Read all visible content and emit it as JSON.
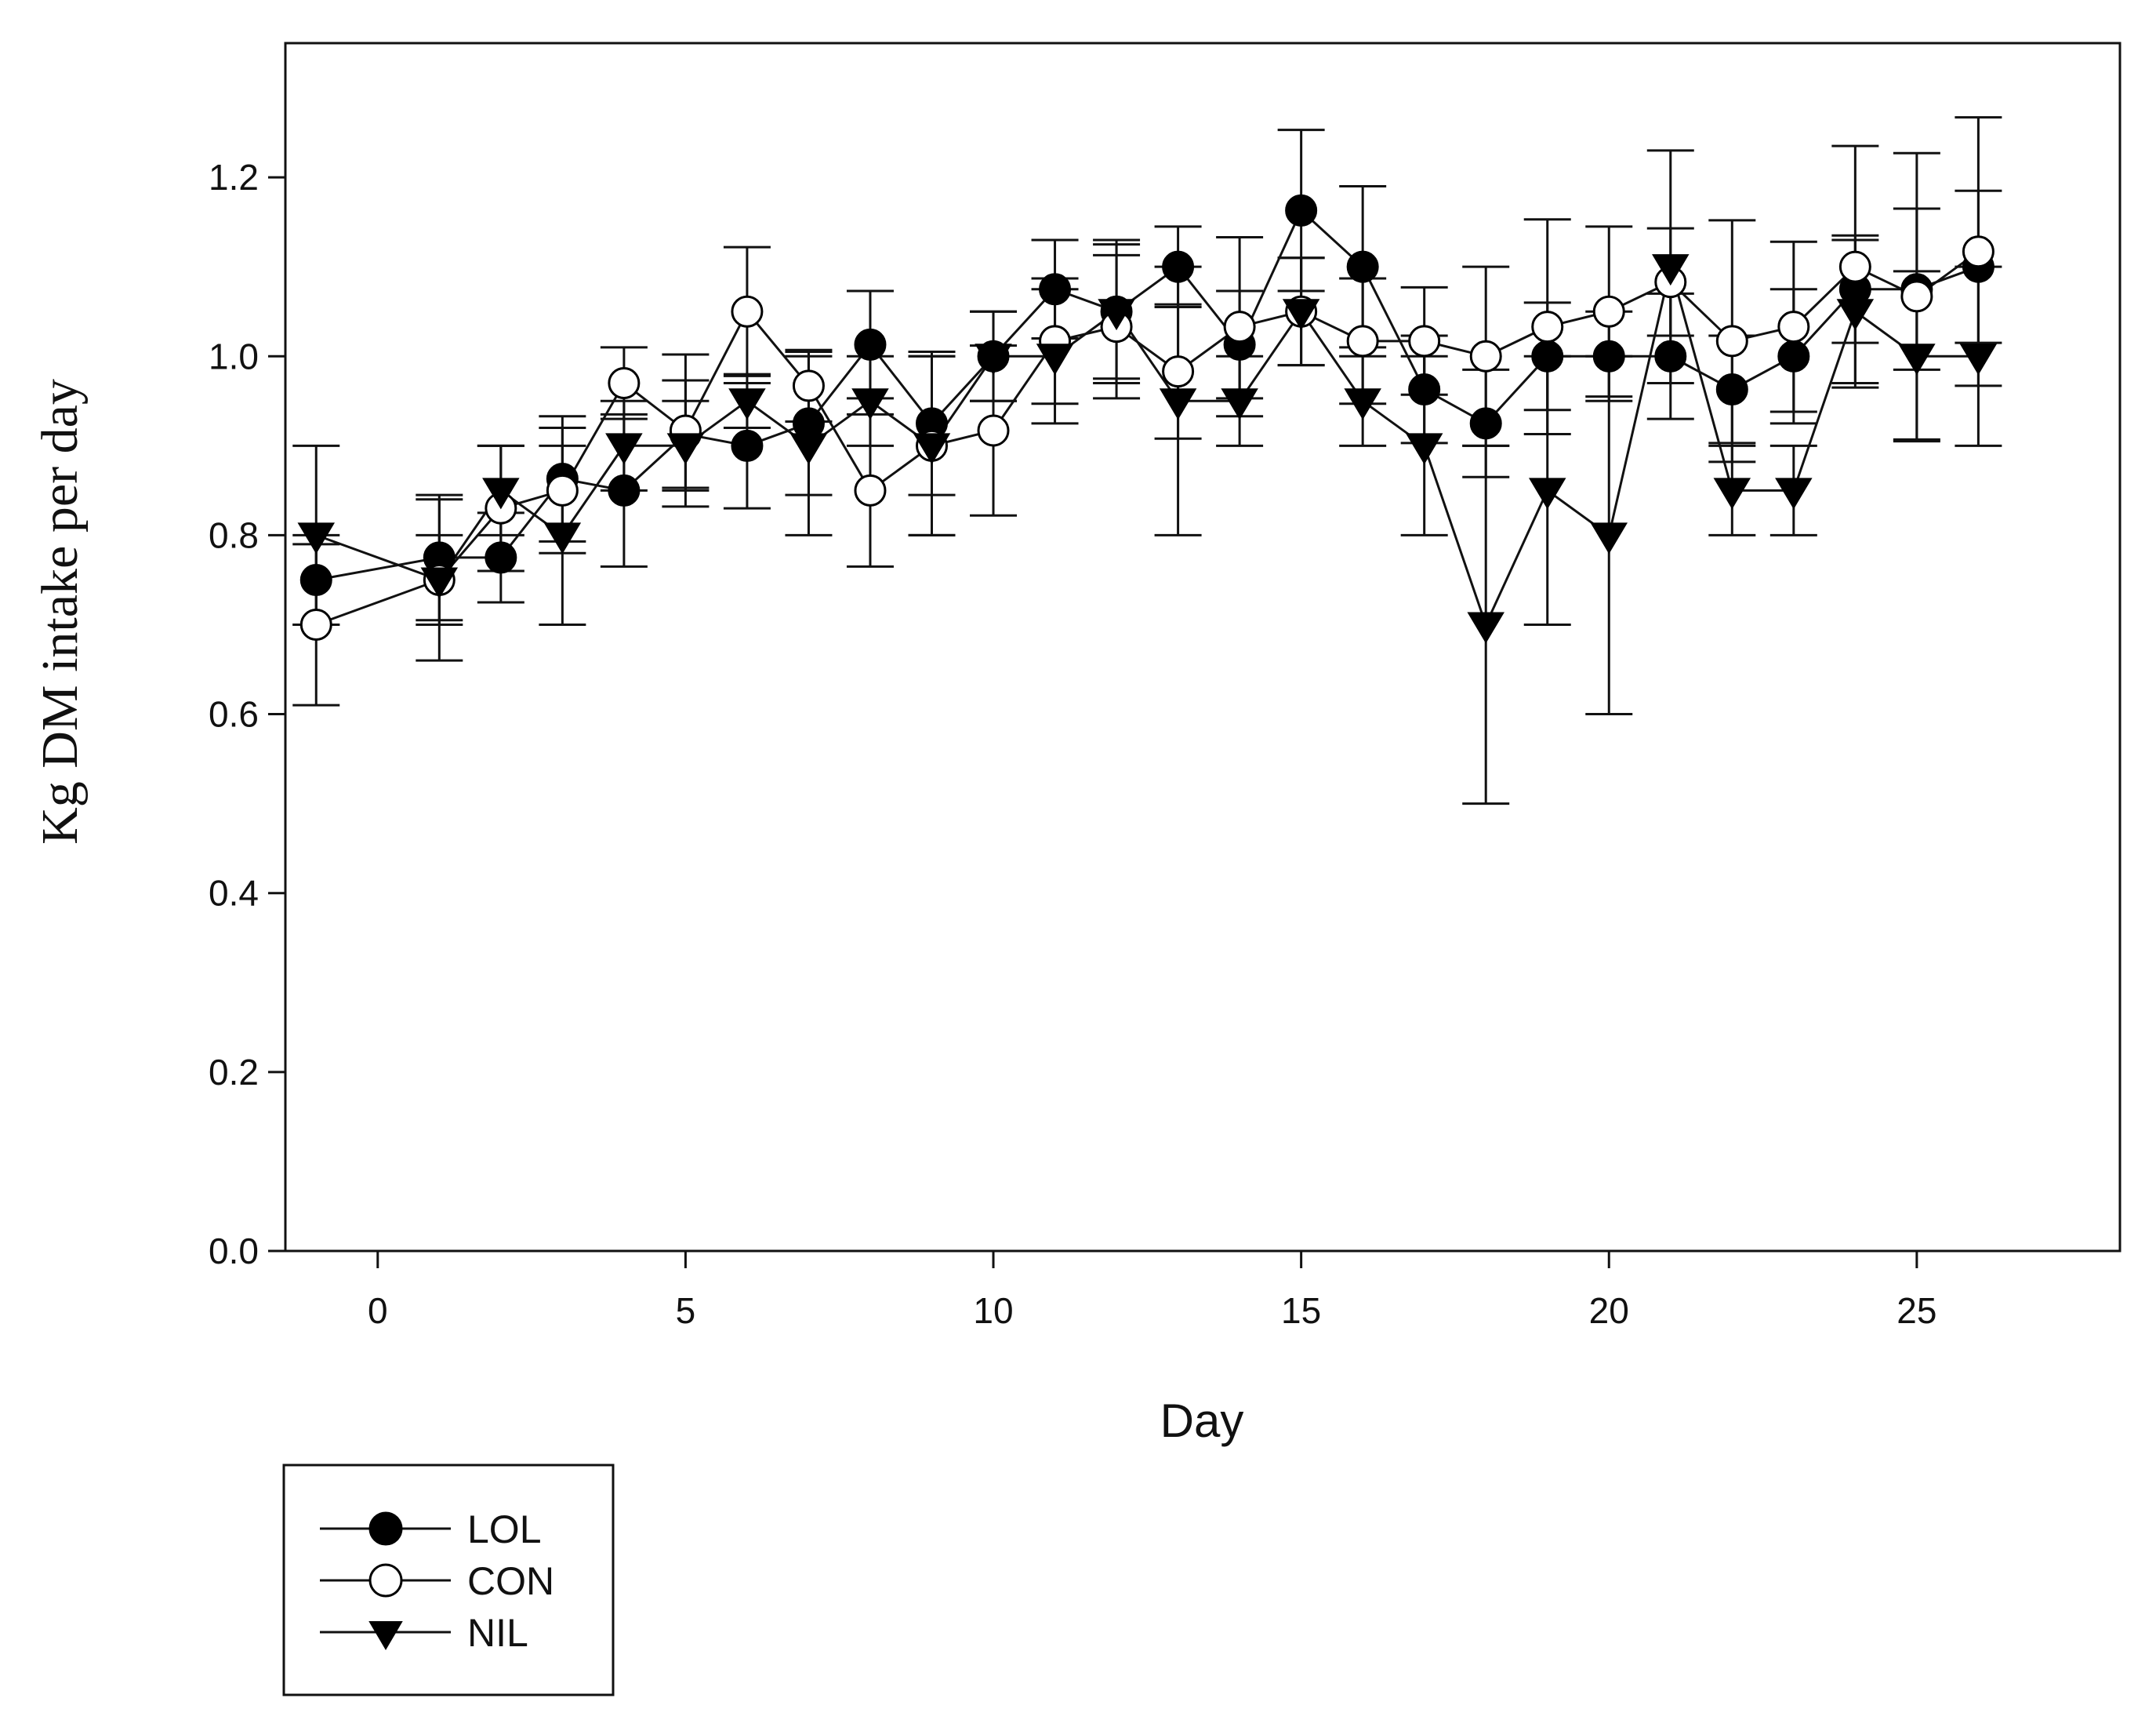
{
  "chart_data": {
    "type": "line",
    "title": "",
    "xlabel": "Day",
    "ylabel": "Kg DM intake per day",
    "xlim": [
      -1.5,
      28.3
    ],
    "ylim": [
      0.0,
      1.35
    ],
    "xticks": [
      0,
      5,
      10,
      15,
      20,
      25
    ],
    "yticks": [
      0.0,
      0.2,
      0.4,
      0.6,
      0.8,
      1.0,
      1.2
    ],
    "ytick_labels": [
      "0.0",
      "0.2",
      "0.4",
      "0.6",
      "0.8",
      "1.0",
      "1.2"
    ],
    "grid": false,
    "legend_position": "below-left",
    "series": [
      {
        "name": "LOL",
        "marker": "filled-circle",
        "x": [
          -1,
          1,
          2,
          3,
          4,
          5,
          6,
          7,
          8,
          9,
          10,
          11,
          12,
          13,
          14,
          15,
          16,
          17,
          18,
          19,
          20,
          21,
          22,
          23,
          24,
          25,
          26
        ],
        "y": [
          0.75,
          0.775,
          0.775,
          0.863,
          0.85,
          0.913,
          0.9,
          0.925,
          1.013,
          0.925,
          1.0,
          1.075,
          1.05,
          1.1,
          1.013,
          1.163,
          1.1,
          0.963,
          0.925,
          1.0,
          1.0,
          1.0,
          0.963,
          1.0,
          1.075,
          1.075,
          1.1
        ],
        "err": [
          0.05,
          0.07,
          0.05,
          0.07,
          0.085,
          0.06,
          0.07,
          0.08,
          0.06,
          0.08,
          0.05,
          0.055,
          0.08,
          0.045,
          0.06,
          0.09,
          0.09,
          0.06,
          0.06,
          0.06,
          0.05,
          0.07,
          0.06,
          0.075,
          0.06,
          0.09,
          0.085
        ]
      },
      {
        "name": "CON",
        "marker": "open-circle",
        "x": [
          -1,
          1,
          2,
          3,
          4,
          5,
          6,
          7,
          8,
          9,
          10,
          11,
          12,
          13,
          14,
          15,
          16,
          17,
          18,
          19,
          20,
          21,
          22,
          23,
          24,
          25,
          26
        ],
        "y": [
          0.7,
          0.75,
          0.83,
          0.85,
          0.97,
          0.917,
          1.05,
          0.967,
          0.85,
          0.9,
          0.917,
          1.017,
          1.033,
          0.983,
          1.033,
          1.05,
          1.017,
          1.017,
          1.0,
          1.033,
          1.05,
          1.083,
          1.017,
          1.033,
          1.1,
          1.067,
          1.117
        ],
        "err": [
          0.09,
          0.09,
          0.07,
          0.07,
          0.04,
          0.085,
          0.072,
          0.04,
          0.085,
          0.1,
          0.095,
          0.07,
          0.08,
          0.075,
          0.1,
          0.06,
          0.07,
          0.06,
          0.1,
          0.12,
          0.095,
          0.06,
          0.135,
          0.095,
          0.135,
          0.16,
          0.15
        ]
      },
      {
        "name": "NIL",
        "marker": "filled-triangle-down",
        "x": [
          -1,
          1,
          2,
          3,
          4,
          5,
          6,
          7,
          8,
          9,
          10,
          11,
          12,
          13,
          14,
          15,
          16,
          17,
          18,
          19,
          20,
          21,
          22,
          23,
          24,
          25,
          26
        ],
        "y": [
          0.8,
          0.75,
          0.85,
          0.8,
          0.9,
          0.9,
          0.95,
          0.9,
          0.95,
          0.9,
          1.0,
          1.0,
          1.05,
          0.95,
          0.95,
          1.05,
          0.95,
          0.9,
          0.7,
          0.85,
          0.8,
          1.1,
          0.85,
          0.85,
          1.05,
          1.0,
          1.0
        ],
        "err": [
          0.1,
          0.05,
          0.05,
          0.1,
          0.05,
          0.05,
          0.03,
          0.1,
          0.05,
          0.1,
          0.05,
          0.075,
          0.075,
          0.15,
          0.05,
          0.06,
          0.05,
          0.1,
          0.2,
          0.15,
          0.2,
          0.13,
          0.05,
          0.05,
          0.08,
          0.095,
          0.1
        ]
      }
    ]
  }
}
